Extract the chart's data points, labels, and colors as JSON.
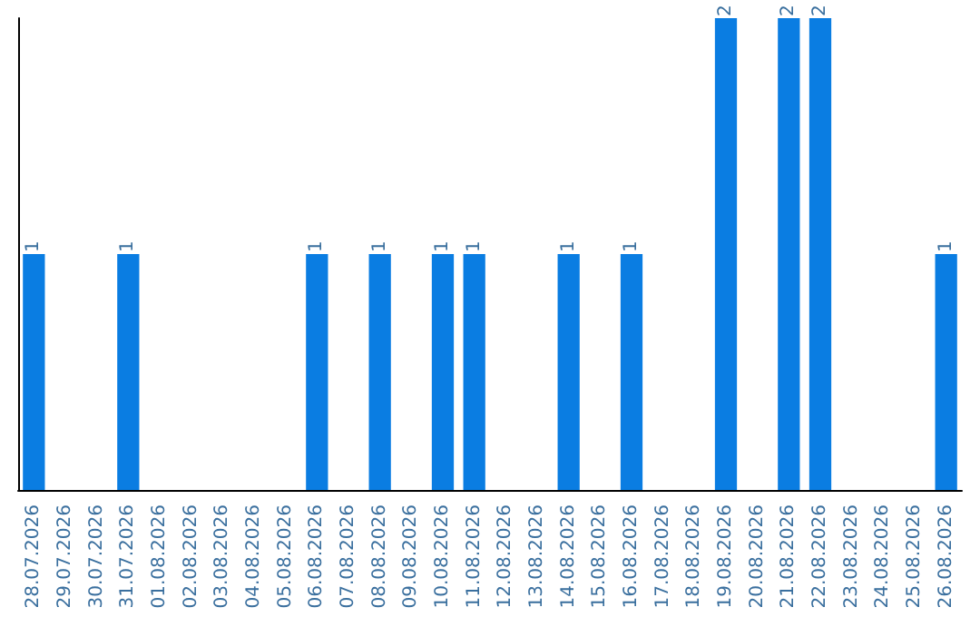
{
  "chart_data": {
    "type": "bar",
    "categories": [
      "28.07.2026",
      "29.07.2026",
      "30.07.2026",
      "31.07.2026",
      "01.08.2026",
      "02.08.2026",
      "03.08.2026",
      "04.08.2026",
      "05.08.2026",
      "06.08.2026",
      "07.08.2026",
      "08.08.2026",
      "09.08.2026",
      "10.08.2026",
      "11.08.2026",
      "12.08.2026",
      "13.08.2026",
      "14.08.2026",
      "15.08.2026",
      "16.08.2026",
      "17.08.2026",
      "18.08.2026",
      "19.08.2026",
      "20.08.2026",
      "21.08.2026",
      "22.08.2026",
      "23.08.2026",
      "24.08.2026",
      "25.08.2026",
      "26.08.2026"
    ],
    "values": [
      1,
      0,
      0,
      1,
      0,
      0,
      0,
      0,
      0,
      1,
      0,
      1,
      0,
      1,
      1,
      0,
      0,
      1,
      0,
      1,
      0,
      0,
      2,
      0,
      2,
      2,
      0,
      0,
      0,
      1
    ],
    "value_labels": [
      "1",
      null,
      null,
      "1",
      null,
      null,
      null,
      null,
      null,
      "1",
      null,
      "1",
      null,
      "1",
      "1",
      null,
      null,
      "1",
      null,
      "1",
      null,
      null,
      "2",
      null,
      "2",
      "2",
      null,
      null,
      null,
      "1"
    ],
    "color": "#0a7de2",
    "grid": false,
    "tick_labels": "x"
  }
}
